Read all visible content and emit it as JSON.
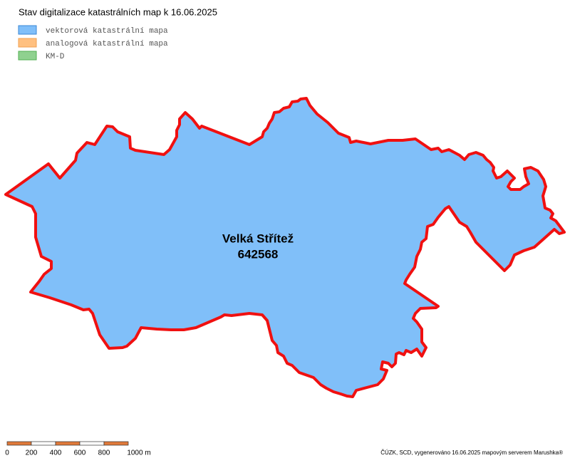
{
  "title": "Stav digitalizace katastrálních map k 16.06.2025",
  "legend": {
    "items": [
      "vektorová katastrální mapa",
      "analogová katastrální mapa",
      "KM-D"
    ]
  },
  "map": {
    "label": {
      "name": "Velká Střítež",
      "code": "642568"
    }
  },
  "scale_bar": {
    "labels": [
      "0",
      "200",
      "400",
      "600",
      "800",
      "1000 m"
    ]
  },
  "footer": "ČÚZK, SCD, vygenerováno 16.06.2025 mapovým serverem Marushka®"
}
